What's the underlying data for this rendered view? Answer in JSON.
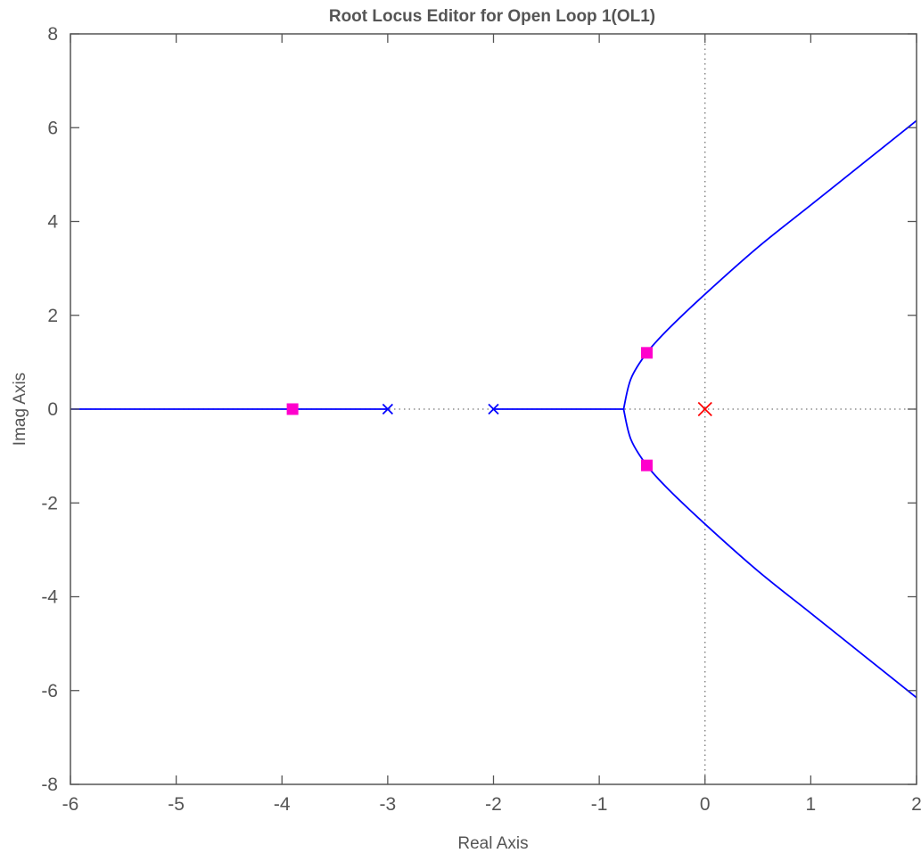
{
  "chart_data": {
    "type": "line",
    "title": "Root Locus Editor for Open Loop 1(OL1)",
    "xlabel": "Real Axis",
    "ylabel": "Imag Axis",
    "xlim": [
      -6,
      2
    ],
    "ylim": [
      -8,
      8
    ],
    "xticks": [
      "-6",
      "-5",
      "-4",
      "-3",
      "-2",
      "-1",
      "0",
      "1",
      "2"
    ],
    "yticks": [
      "8",
      "6",
      "4",
      "2",
      "0",
      "-2",
      "-4",
      "-6",
      "-8"
    ],
    "grid": false,
    "colors": {
      "locus": "#0000ff",
      "pole_marker": "#0000ff",
      "selected_pole": "#ff0000",
      "closed_loop_pole": "#ff00cc",
      "axis": "#555555",
      "reference_line": "#777777"
    },
    "series": [
      {
        "values": [
          [
            -6,
            0
          ],
          [
            -3,
            0
          ]
        ]
      },
      {
        "values": [
          [
            -2,
            0
          ],
          [
            -0.77,
            0
          ]
        ]
      },
      {
        "values": [
          [
            -0.77,
            0
          ],
          [
            -0.7,
            0.65
          ],
          [
            -0.55,
            1.2
          ],
          [
            -0.35,
            1.7
          ],
          [
            0,
            2.45
          ],
          [
            0.5,
            3.45
          ],
          [
            1,
            4.35
          ],
          [
            1.5,
            5.25
          ],
          [
            2,
            6.15
          ]
        ]
      },
      {
        "values": [
          [
            -0.77,
            0
          ],
          [
            -0.7,
            -0.65
          ],
          [
            -0.55,
            -1.2
          ],
          [
            -0.35,
            -1.7
          ],
          [
            0,
            -2.45
          ],
          [
            0.5,
            -3.45
          ],
          [
            1,
            -4.35
          ],
          [
            1.5,
            -5.25
          ],
          [
            2,
            -6.15
          ]
        ]
      }
    ],
    "open_loop_poles": [
      [
        -3,
        0
      ],
      [
        -2,
        0
      ]
    ],
    "selected_pole": [
      0,
      0
    ],
    "closed_loop_poles": [
      [
        -3.9,
        0
      ],
      [
        -0.55,
        1.2
      ],
      [
        -0.55,
        -1.2
      ]
    ]
  }
}
